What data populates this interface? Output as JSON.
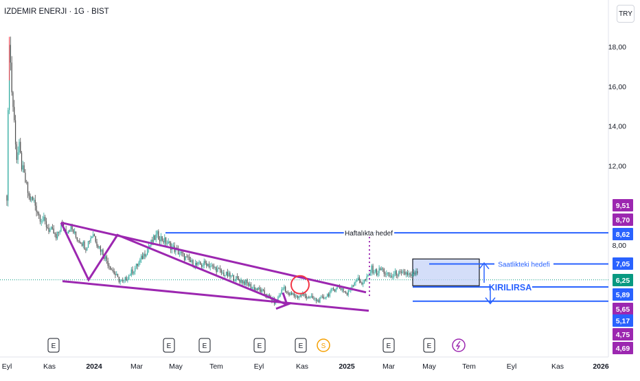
{
  "header": {
    "symbol_title": "IZDEMIR ENERJI · 1G · BIST",
    "currency_button": "TRY"
  },
  "colors": {
    "pattern_purple": "#9c27b0",
    "level_blue": "#2962ff",
    "candle_up": "#26a69a",
    "candle_down": "#4a4a4a",
    "last_price_green": "#089981",
    "circle_red": "#f23645",
    "box_fill": "#c5d3f7"
  },
  "annotations": {
    "weekly_target": "Haftalıkta hedef",
    "hourly_target": "Saatlikteki hedefi",
    "breakdown": "KIRILIRSA"
  },
  "event_markers": [
    {
      "label": "E",
      "month": "Kas 2023",
      "icon": "earnings-icon"
    },
    {
      "label": "E",
      "month": "May 2024",
      "icon": "earnings-icon"
    },
    {
      "label": "E",
      "month": "Haz 2024",
      "icon": "earnings-icon"
    },
    {
      "label": "E",
      "month": "Eyl 2024",
      "icon": "earnings-icon"
    },
    {
      "label": "E",
      "month": "Kas 2024",
      "icon": "earnings-icon"
    },
    {
      "label": "S",
      "month": "Kas 2024",
      "icon": "split-icon"
    },
    {
      "label": "E",
      "month": "Mar 2025",
      "icon": "earnings-icon"
    },
    {
      "label": "E",
      "month": "May 2025",
      "icon": "earnings-icon"
    },
    {
      "label": "",
      "month": "Haz 2025",
      "icon": "lightning-icon"
    }
  ],
  "chart_data": {
    "type": "candlestick",
    "title": "IZDEMIR ENERJI · 1G · BIST",
    "currency": "TRY",
    "x_tick_labels": [
      "Eyl",
      "Kas",
      "2024",
      "Mar",
      "May",
      "Tem",
      "Eyl",
      "Kas",
      "2025",
      "Mar",
      "May",
      "Tem",
      "Eyl",
      "Kas",
      "2026"
    ],
    "y_tick_labels": [
      "18,00",
      "16,00",
      "14,00",
      "12,00",
      "8,00"
    ],
    "y_ticks": [
      18,
      16,
      14,
      12,
      8
    ],
    "ylim": [
      3.7,
      19.1
    ],
    "price_badges": [
      {
        "label": "9,51",
        "value": 9.51,
        "color": "#9c27b0"
      },
      {
        "label": "8,70",
        "value": 8.7,
        "color": "#9c27b0"
      },
      {
        "label": "8,62",
        "value": 8.62,
        "color": "#2962ff"
      },
      {
        "label": "7,05",
        "value": 7.05,
        "color": "#2962ff"
      },
      {
        "label": "6,25",
        "value": 6.25,
        "color": "#089981"
      },
      {
        "label": "5,89",
        "value": 5.89,
        "color": "#2962ff"
      },
      {
        "label": "5,65",
        "value": 5.65,
        "color": "#9c27b0"
      },
      {
        "label": "5,17",
        "value": 5.17,
        "color": "#2962ff"
      },
      {
        "label": "4,75",
        "value": 4.75,
        "color": "#9c27b0"
      },
      {
        "label": "4,69",
        "value": 4.69,
        "color": "#9c27b0"
      }
    ],
    "last_price": 6.25,
    "horizontal_levels": [
      {
        "name": "Haftalıkta hedef",
        "value": 8.62
      },
      {
        "name": "Saatlikteki hedefi",
        "value": 7.05
      },
      {
        "name": "KIRILIRSA",
        "value": 5.89
      },
      {
        "name": "",
        "value": 5.17
      }
    ],
    "range_box": {
      "top": 7.3,
      "bottom": 5.95
    },
    "series": [
      {
        "name": "",
        "values": [
          [
            0,
            10.5
          ],
          [
            2,
            18.5
          ],
          [
            4,
            15.8
          ],
          [
            6,
            14.2
          ],
          [
            8,
            12.4
          ],
          [
            10,
            12.9
          ],
          [
            12,
            12.0
          ],
          [
            15,
            11.2
          ],
          [
            18,
            10.4
          ],
          [
            22,
            10.2
          ],
          [
            26,
            9.5
          ],
          [
            30,
            9.2
          ],
          [
            34,
            8.8
          ],
          [
            38,
            8.6
          ],
          [
            40,
            8.3
          ],
          [
            44,
            9.0
          ],
          [
            48,
            8.7
          ],
          [
            52,
            8.9
          ],
          [
            56,
            8.4
          ],
          [
            60,
            8.2
          ],
          [
            64,
            7.9
          ],
          [
            67,
            8.3
          ],
          [
            70,
            8.6
          ],
          [
            74,
            8.0
          ],
          [
            78,
            7.6
          ],
          [
            82,
            7.1
          ],
          [
            86,
            6.7
          ],
          [
            90,
            6.3
          ],
          [
            94,
            6.1
          ],
          [
            98,
            6.4
          ],
          [
            102,
            6.7
          ],
          [
            106,
            7.0
          ],
          [
            110,
            7.4
          ],
          [
            114,
            7.8
          ],
          [
            118,
            8.2
          ],
          [
            122,
            8.5
          ],
          [
            126,
            8.3
          ],
          [
            130,
            8.1
          ],
          [
            134,
            7.9
          ],
          [
            138,
            7.7
          ],
          [
            142,
            7.5
          ],
          [
            146,
            7.3
          ],
          [
            150,
            7.1
          ],
          [
            154,
            7.0
          ],
          [
            158,
            7.0
          ],
          [
            162,
            7.1
          ],
          [
            166,
            6.9
          ],
          [
            170,
            6.8
          ],
          [
            174,
            6.6
          ],
          [
            178,
            6.5
          ],
          [
            182,
            6.4
          ],
          [
            186,
            6.3
          ],
          [
            190,
            6.2
          ],
          [
            194,
            6.1
          ],
          [
            198,
            5.9
          ],
          [
            202,
            5.8
          ],
          [
            206,
            5.7
          ],
          [
            210,
            5.5
          ],
          [
            214,
            5.3
          ],
          [
            218,
            5.1
          ],
          [
            222,
            5.6
          ],
          [
            225,
            5.9
          ],
          [
            228,
            5.5
          ],
          [
            232,
            5.5
          ],
          [
            236,
            5.4
          ],
          [
            240,
            5.5
          ],
          [
            244,
            5.4
          ],
          [
            248,
            5.3
          ],
          [
            252,
            5.2
          ],
          [
            256,
            5.3
          ],
          [
            260,
            5.5
          ],
          [
            264,
            5.7
          ],
          [
            268,
            5.9
          ],
          [
            272,
            5.8
          ],
          [
            276,
            5.5
          ],
          [
            280,
            6.0
          ],
          [
            284,
            6.3
          ],
          [
            288,
            6.1
          ],
          [
            292,
            6.3
          ],
          [
            296,
            6.8
          ],
          [
            300,
            6.6
          ],
          [
            304,
            6.8
          ],
          [
            308,
            6.5
          ],
          [
            312,
            6.4
          ],
          [
            316,
            6.6
          ],
          [
            320,
            6.5
          ],
          [
            324,
            6.6
          ],
          [
            328,
            6.4
          ],
          [
            332,
            6.6
          ],
          [
            334,
            6.3
          ]
        ]
      }
    ]
  }
}
